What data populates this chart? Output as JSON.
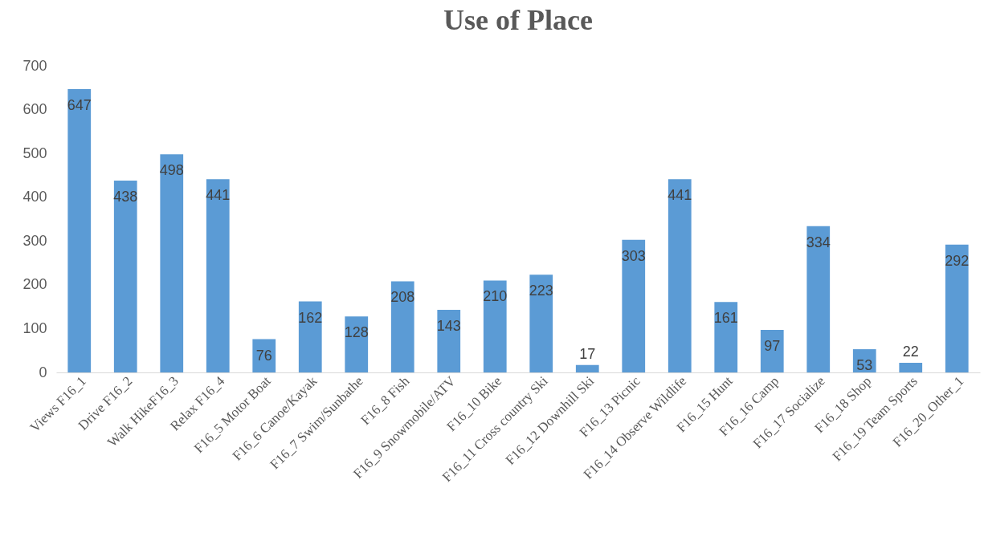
{
  "chart_data": {
    "type": "bar",
    "title": "Use of Place",
    "categories": [
      "Views F16_1",
      "Drive F16_2",
      "Walk HikeF16_3",
      "Relax F16_4",
      "F16_5 Motor Boat",
      "F16_6 Canoe/Kayak",
      "F16_7 Swim/Sunbathe",
      "F16_8 Fish",
      "F16_9 Snowmobile/ATV",
      "F16_10 Bike",
      "F16_11 Cross country Ski",
      "F16_12 Downhill Ski",
      "F16_13 Picnic",
      "F16_14 Observe Wildlife",
      "F16_15 Hunt",
      "F16_16 Camp",
      "F16_17 Socialize",
      "F16_18 Shop",
      "F16_19 Team Sports",
      "F16_20_Other_1"
    ],
    "values": [
      647,
      438,
      498,
      441,
      76,
      162,
      128,
      208,
      143,
      210,
      223,
      17,
      303,
      441,
      161,
      97,
      334,
      53,
      22,
      292
    ],
    "color": "#5b9bd5",
    "ylim": [
      0,
      700
    ],
    "yticks": [
      0,
      100,
      200,
      300,
      400,
      500,
      600,
      700
    ],
    "grid": false,
    "data_labels": true
  }
}
